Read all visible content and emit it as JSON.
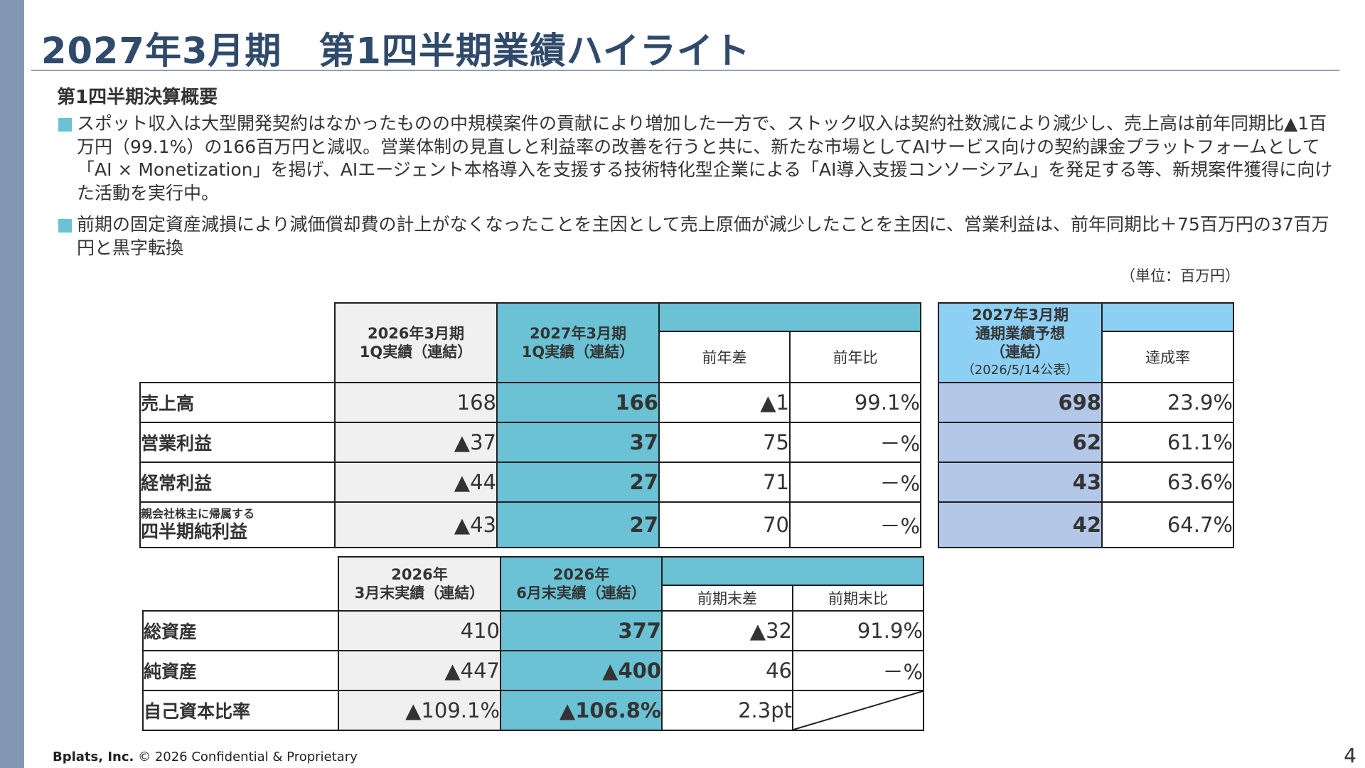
{
  "title": "2027年3月期　第1四半期業績ハイライト",
  "subheading": "第1四半期決算概要",
  "bullets": [
    "スポット収入は大型開発契約はなかったものの中規模案件の貢献により増加した一方で、ストック収入は契約社数減により減少し、売上高は前年同期比▲1百万円（99.1%）の166百万円と減収。営業体制の見直しと利益率の改善を行うと共に、新たな市場としてAIサービス向けの契約課金プラットフォームとして「AI × Monetization」を掲げ、AIエージェント本格導入を支援する技術特化型企業による「AI導入支援コンソーシアム」を発足する等、新規案件獲得に向けた活動を実行中。",
    "前期の固定資産減損により減価償却費の計上がなくなったことを主因として売上原価が減少したことを主因に、営業利益は、前年同期比＋75百万円の37百万円と黒字転換"
  ],
  "unit_note": "（単位：百万円）",
  "table1": {
    "headers": {
      "prev": "2026年3月期\n1Q実績（連結）",
      "curr": "2027年3月期\n1Q実績（連結）",
      "diff": "前年差",
      "ratio": "前年比",
      "forecast_title": "2027年3月期\n通期業績予想\n（連結）",
      "forecast_pub": "（2026/5/14公表）",
      "achievement": "達成率"
    },
    "rows": [
      {
        "label_small": "",
        "label": "売上高",
        "prev": "168",
        "curr": "166",
        "diff": "▲1",
        "ratio": "99.1%",
        "forecast": "698",
        "achievement": "23.9%"
      },
      {
        "label_small": "",
        "label": "営業利益",
        "prev": "▲37",
        "curr": "37",
        "diff": "75",
        "ratio": "－%",
        "forecast": "62",
        "achievement": "61.1%"
      },
      {
        "label_small": "",
        "label": "経常利益",
        "prev": "▲44",
        "curr": "27",
        "diff": "71",
        "ratio": "－%",
        "forecast": "43",
        "achievement": "63.6%"
      },
      {
        "label_small": "親会社株主に帰属する",
        "label": "四半期純利益",
        "prev": "▲43",
        "curr": "27",
        "diff": "70",
        "ratio": "－%",
        "forecast": "42",
        "achievement": "64.7%"
      }
    ]
  },
  "table2": {
    "headers": {
      "prev": "2026年\n3月末実績（連結）",
      "curr": "2026年\n6月末実績（連結）",
      "diff": "前期末差",
      "ratio": "前期末比"
    },
    "rows": [
      {
        "label": "総資産",
        "prev": "410",
        "curr": "377",
        "diff": "▲32",
        "ratio": "91.9%"
      },
      {
        "label": "純資産",
        "prev": "▲447",
        "curr": "▲400",
        "diff": "46",
        "ratio": "－%"
      },
      {
        "label": "自己資本比率",
        "prev": "▲109.1%",
        "curr": "▲106.8%",
        "diff": "2.3pt",
        "ratio": ""
      }
    ]
  },
  "footer": {
    "company": "Bplats, Inc.",
    "notice": " © 2026 Confidential & Proprietary"
  },
  "page_number": "4"
}
